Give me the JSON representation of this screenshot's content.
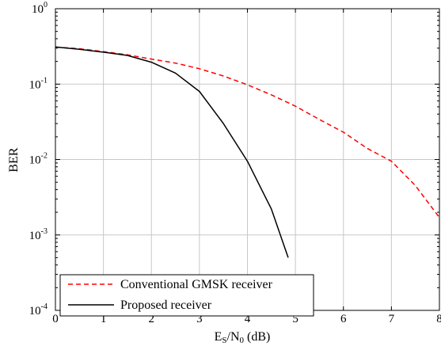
{
  "chart_data": {
    "type": "line",
    "xlabel": {
      "base_e": "E",
      "sub_s": "S",
      "sep": "/N",
      "sub_0": "0",
      "unit": " (dB)"
    },
    "ylabel": "BER",
    "xlim": [
      0,
      8
    ],
    "ylim": [
      0.0001,
      1
    ],
    "y_scale": "log",
    "grid": true,
    "x_ticks": [
      "0",
      "1",
      "2",
      "3",
      "4",
      "5",
      "6",
      "7",
      "8"
    ],
    "y_ticks": [
      {
        "value": 1,
        "base": "10",
        "exp": "0"
      },
      {
        "value": 0.1,
        "base": "10",
        "exp": "-1"
      },
      {
        "value": 0.01,
        "base": "10",
        "exp": "-2"
      },
      {
        "value": 0.001,
        "base": "10",
        "exp": "-3"
      },
      {
        "value": 0.0001,
        "base": "10",
        "exp": "-4"
      }
    ],
    "legend_position": "bottom-left",
    "series": [
      {
        "name": "Conventional GMSK receiver",
        "color": "#ff0000",
        "dash": "dashed",
        "x": [
          0,
          0.5,
          1,
          1.5,
          2,
          2.5,
          3,
          3.5,
          4,
          4.5,
          5,
          5.5,
          6,
          6.5,
          7,
          7.5,
          8
        ],
        "y": [
          0.31,
          0.295,
          0.27,
          0.245,
          0.215,
          0.19,
          0.16,
          0.128,
          0.098,
          0.072,
          0.051,
          0.034,
          0.023,
          0.014,
          0.0095,
          0.0045,
          0.0017
        ]
      },
      {
        "name": "Proposed receiver",
        "color": "#000000",
        "dash": "solid",
        "x": [
          0,
          0.5,
          1,
          1.5,
          2,
          2.5,
          3,
          3.5,
          4,
          4.5,
          4.85
        ],
        "y": [
          0.31,
          0.29,
          0.265,
          0.24,
          0.195,
          0.14,
          0.08,
          0.03,
          0.0095,
          0.0022,
          0.0005
        ]
      }
    ]
  }
}
